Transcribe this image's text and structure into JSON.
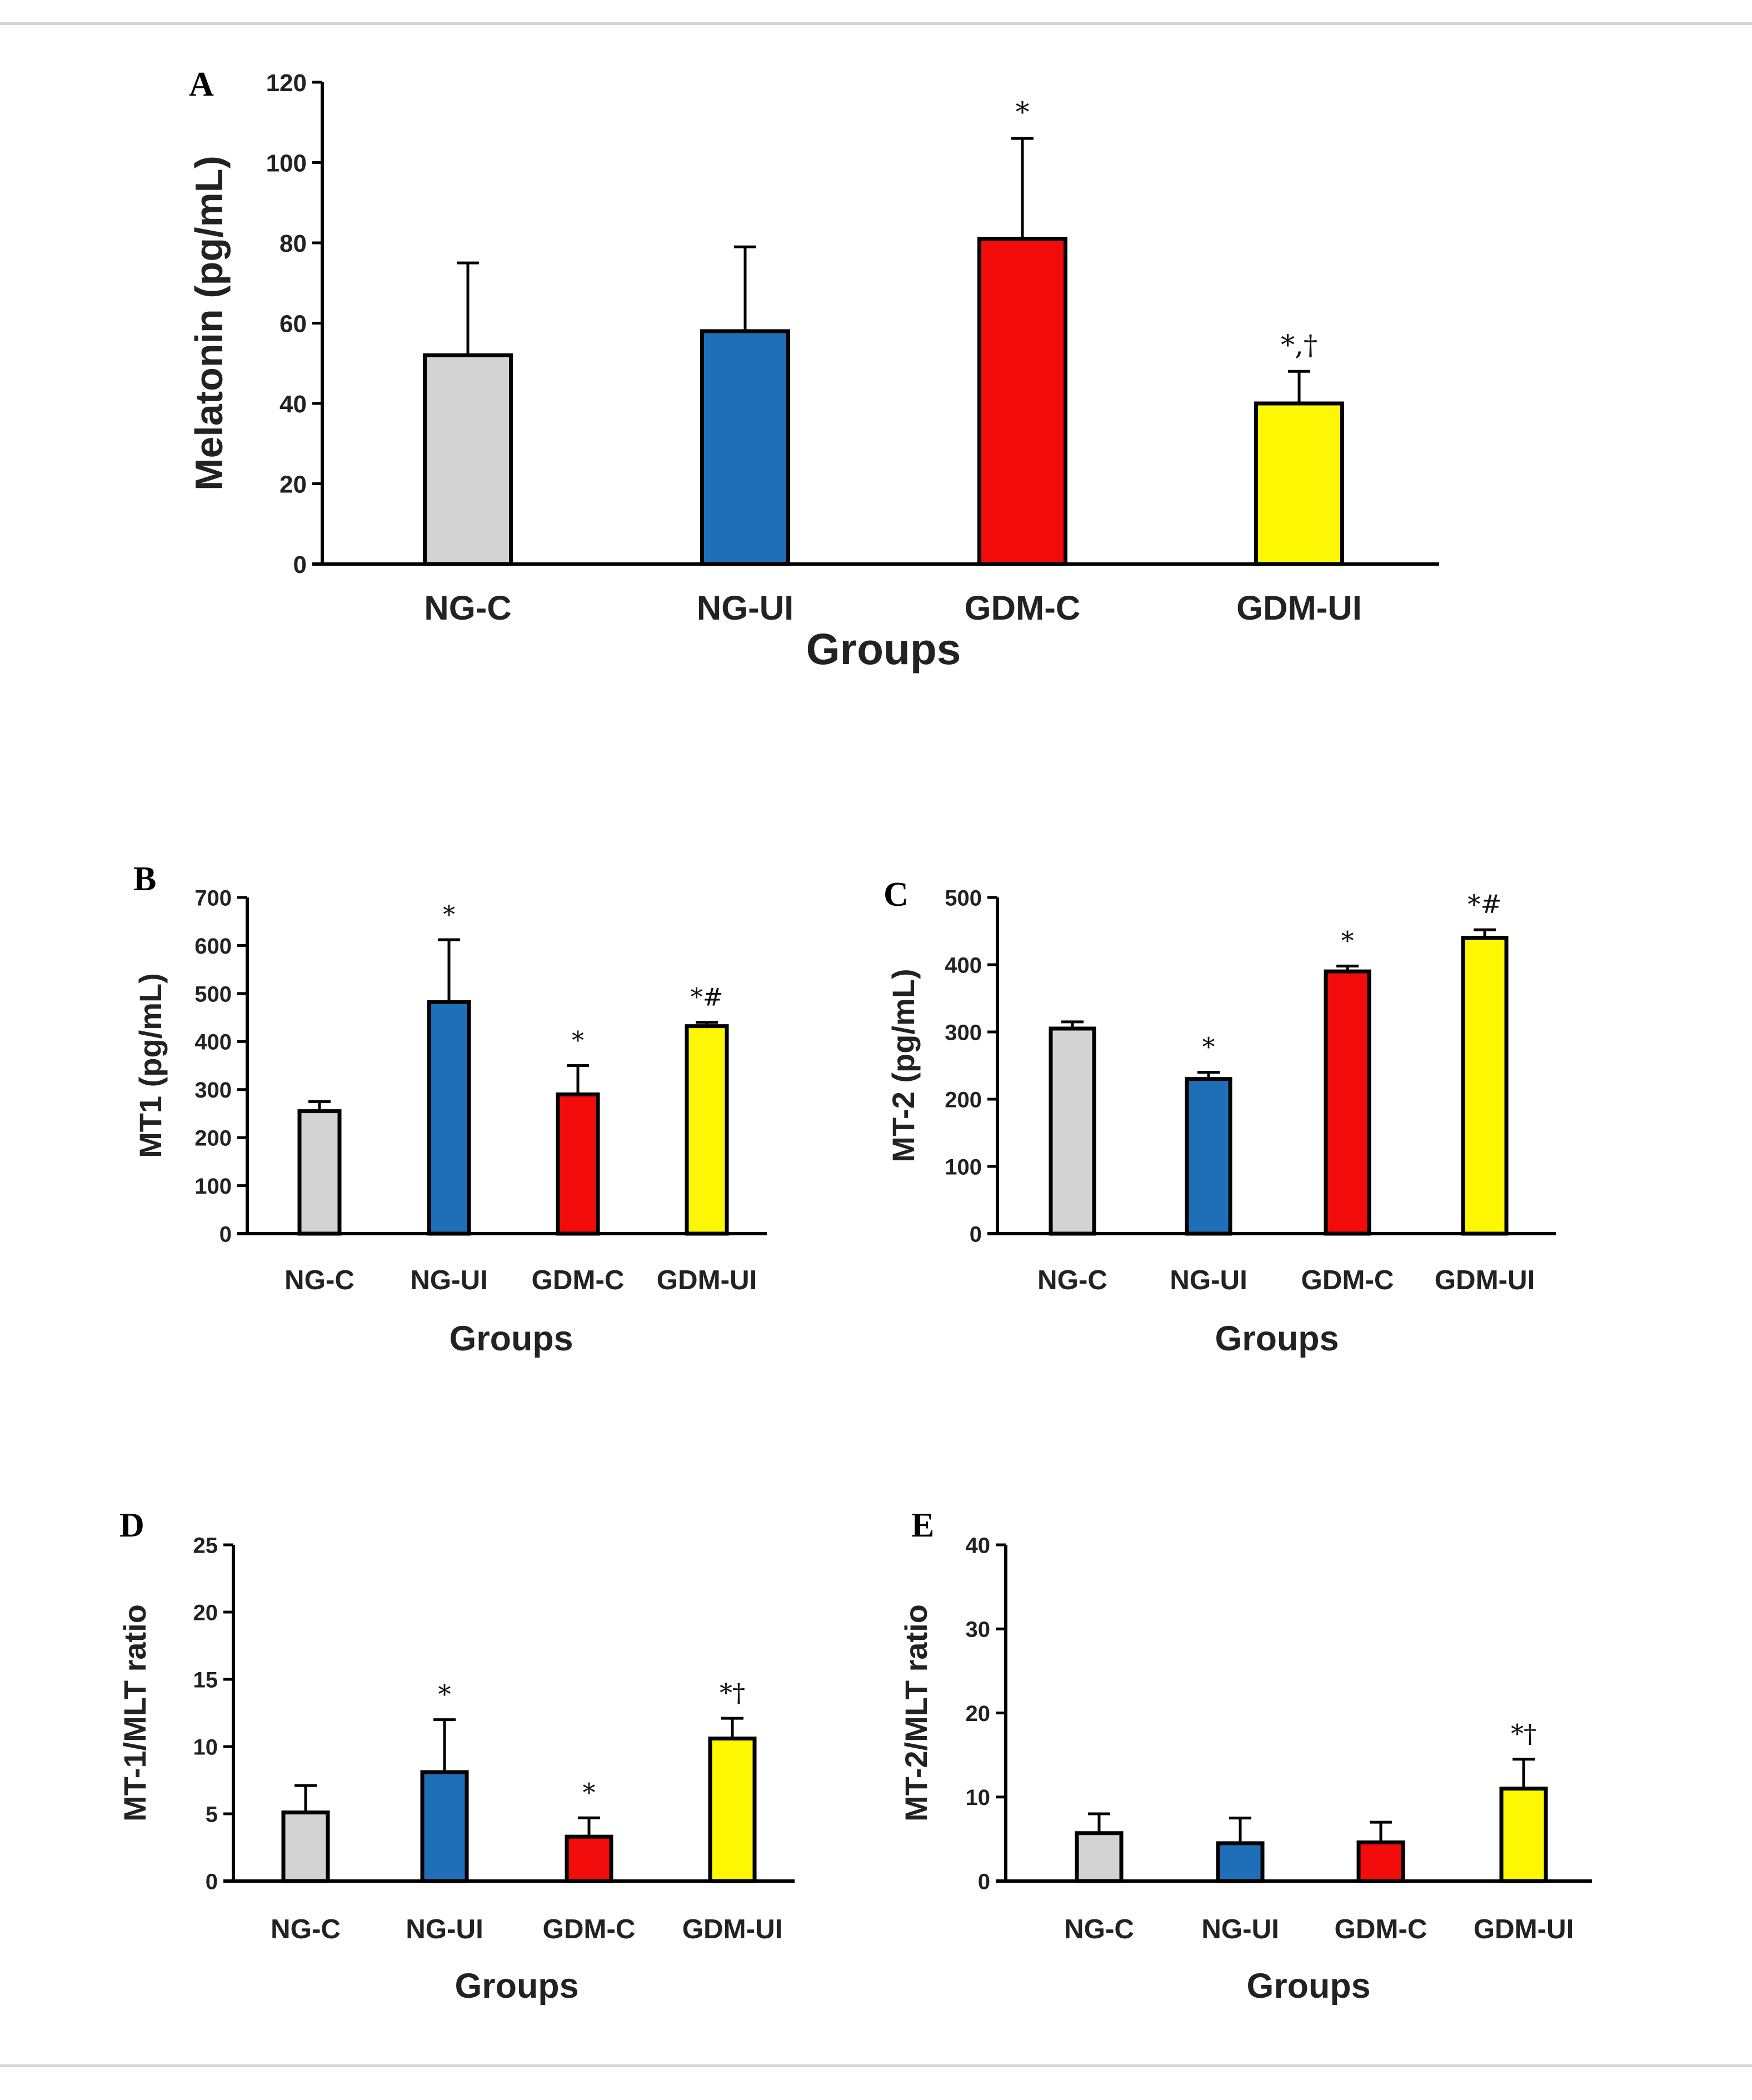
{
  "colors": {
    "NG-C": "#d3d3d3",
    "NG-UI": "#1f6fb8",
    "GDM-C": "#f20c0c",
    "GDM-UI": "#fdf703",
    "outline": "#000000",
    "background": "#ffffff"
  },
  "chart_data": [
    {
      "id": "A",
      "type": "bar",
      "panel_label": "A",
      "ylabel": "Melatonin (pg/mL)",
      "xlabel": "Groups",
      "categories": [
        "NG-C",
        "NG-UI",
        "GDM-C",
        "GDM-UI"
      ],
      "values": [
        52,
        58,
        81,
        40
      ],
      "errors": [
        23,
        21,
        25,
        8
      ],
      "annotations": [
        "",
        "",
        "*",
        "*,†"
      ],
      "ylim": [
        0,
        120
      ],
      "yticks": [
        "0",
        "20",
        "40",
        "60",
        "80",
        "100",
        "120"
      ]
    },
    {
      "id": "B",
      "type": "bar",
      "panel_label": "B",
      "ylabel": "MT1 (pg/mL)",
      "xlabel": "Groups",
      "categories": [
        "NG-C",
        "NG-UI",
        "GDM-C",
        "GDM-UI"
      ],
      "values": [
        255,
        482,
        290,
        432
      ],
      "errors": [
        20,
        130,
        60,
        8
      ],
      "annotations": [
        "",
        "*",
        "*",
        "*#"
      ],
      "ylim": [
        0,
        700
      ],
      "yticks": [
        "0",
        "100",
        "200",
        "300",
        "400",
        "500",
        "600",
        "700"
      ]
    },
    {
      "id": "C",
      "type": "bar",
      "panel_label": "C",
      "ylabel": "MT-2 (pg/mL)",
      "xlabel": "Groups",
      "categories": [
        "NG-C",
        "NG-UI",
        "GDM-C",
        "GDM-UI"
      ],
      "values": [
        305,
        230,
        390,
        440
      ],
      "errors": [
        10,
        10,
        8,
        12
      ],
      "annotations": [
        "",
        "*",
        "*",
        "*#"
      ],
      "ylim": [
        0,
        500
      ],
      "yticks": [
        "0",
        "100",
        "200",
        "300",
        "400",
        "500"
      ]
    },
    {
      "id": "D",
      "type": "bar",
      "panel_label": "D",
      "ylabel": "MT-1/MLT ratio",
      "xlabel": "Groups",
      "categories": [
        "NG-C",
        "NG-UI",
        "GDM-C",
        "GDM-UI"
      ],
      "values": [
        5.1,
        8.1,
        3.3,
        10.6
      ],
      "errors": [
        2.0,
        3.9,
        1.4,
        1.5
      ],
      "annotations": [
        "",
        "*",
        "*",
        "*†"
      ],
      "ylim": [
        0,
        25
      ],
      "yticks": [
        "0",
        "5",
        "10",
        "15",
        "20",
        "25"
      ]
    },
    {
      "id": "E",
      "type": "bar",
      "panel_label": "E",
      "ylabel": "MT-2/MLT ratio",
      "xlabel": "Groups",
      "categories": [
        "NG-C",
        "NG-UI",
        "GDM-C",
        "GDM-UI"
      ],
      "values": [
        5.7,
        4.5,
        4.6,
        11.0
      ],
      "errors": [
        2.3,
        3.0,
        2.4,
        3.5
      ],
      "annotations": [
        "",
        "",
        "",
        "*†"
      ],
      "ylim": [
        0,
        40
      ],
      "yticks": [
        "0",
        "10",
        "20",
        "30",
        "40"
      ]
    }
  ]
}
